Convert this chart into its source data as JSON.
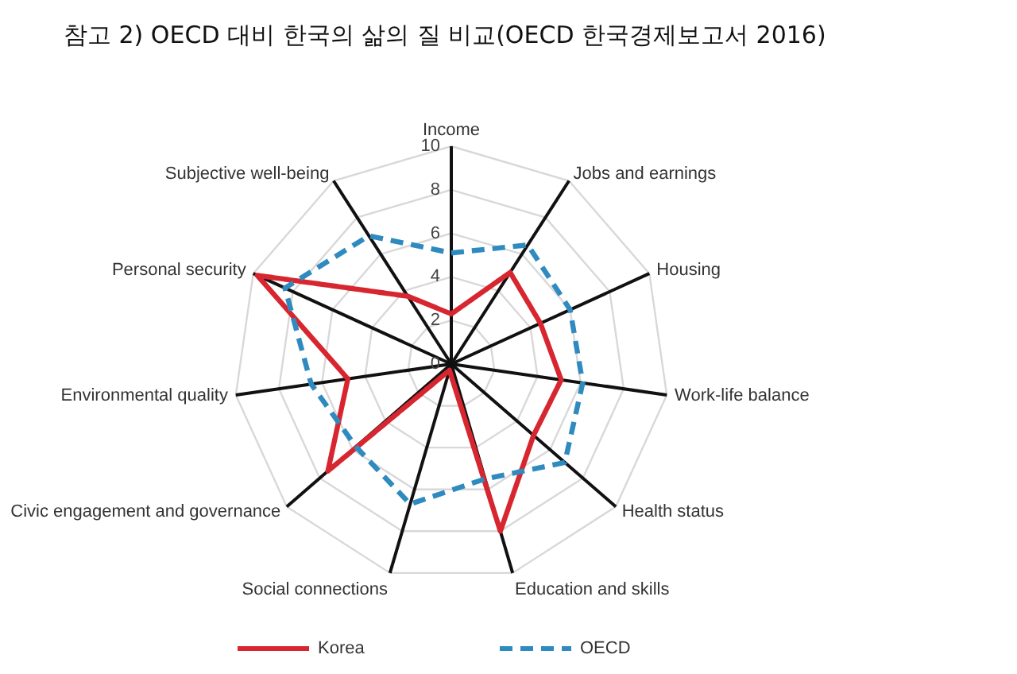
{
  "chart_data": {
    "type": "radar",
    "title": "참고 2) OECD 대비 한국의 삶의 질 비교(OECD 한국경제보고서 2016)",
    "categories": [
      "Income",
      "Jobs and earnings",
      "Housing",
      "Work-life balance",
      "Health status",
      "Education and skills",
      "Social connections",
      "Civic engagement and governance",
      "Environmental quality",
      "Personal security",
      "Subjective well-being"
    ],
    "series": [
      {
        "name": "Korea",
        "color": "#d7262f",
        "line_style": "solid",
        "values": [
          2.3,
          5.0,
          4.5,
          5.1,
          5.0,
          8.0,
          0.3,
          7.5,
          4.8,
          9.8,
          3.7
        ]
      },
      {
        "name": "OECD",
        "color": "#2f8bbf",
        "line_style": "dashed",
        "values": [
          5.1,
          6.5,
          6.0,
          6.1,
          6.9,
          5.5,
          6.7,
          5.8,
          6.5,
          8.4,
          7.0
        ]
      }
    ],
    "ylim": [
      0,
      10
    ],
    "yticks": [
      0,
      2,
      4,
      6,
      8,
      10
    ],
    "grid": true,
    "legend": "bottom"
  }
}
